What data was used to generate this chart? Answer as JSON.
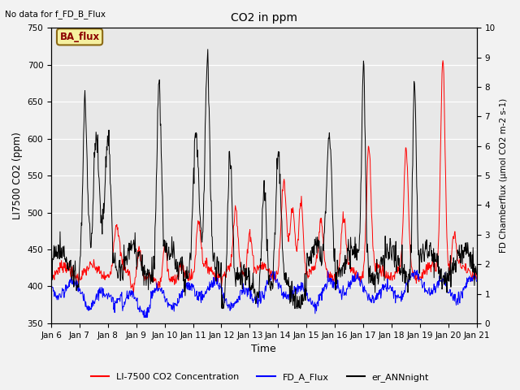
{
  "title": "CO2 in ppm",
  "top_left_text": "No data for f_FD_B_Flux",
  "annotation_box": "BA_flux",
  "xlabel": "Time",
  "ylabel_left": "LI7500 CO2 (ppm)",
  "ylabel_right": "FD Chamberflux (μmol CO2 m-2 s-1)",
  "ylim_left": [
    350,
    750
  ],
  "ylim_right": [
    0.0,
    10.0
  ],
  "yticks_left": [
    350,
    400,
    450,
    500,
    550,
    600,
    650,
    700,
    750
  ],
  "yticks_right": [
    0.0,
    1.0,
    2.0,
    3.0,
    4.0,
    5.0,
    6.0,
    7.0,
    8.0,
    9.0,
    10.0
  ],
  "xtick_labels": [
    "Jan 6",
    "Jan 7",
    "Jan 8",
    "Jan 9",
    "Jan 10",
    "Jan 11",
    "Jan 12",
    "Jan 13",
    "Jan 14",
    "Jan 15",
    "Jan 16",
    "Jan 17",
    "Jan 18",
    "Jan 19",
    "Jan 20",
    "Jan 21"
  ],
  "legend_entries": [
    "LI-7500 CO2 Concentration",
    "FD_A_Flux",
    "er_ANNnight"
  ],
  "legend_colors": [
    "red",
    "blue",
    "black"
  ],
  "plot_bg_color": "#e8e8e8",
  "fig_bg_color": "#f2f2f2",
  "figsize": [
    6.4,
    4.8
  ],
  "dpi": 100,
  "ba_flux_box_color": "#f5f0a0",
  "ba_flux_edge_color": "#8b6914",
  "ba_flux_text_color": "#8b0000"
}
